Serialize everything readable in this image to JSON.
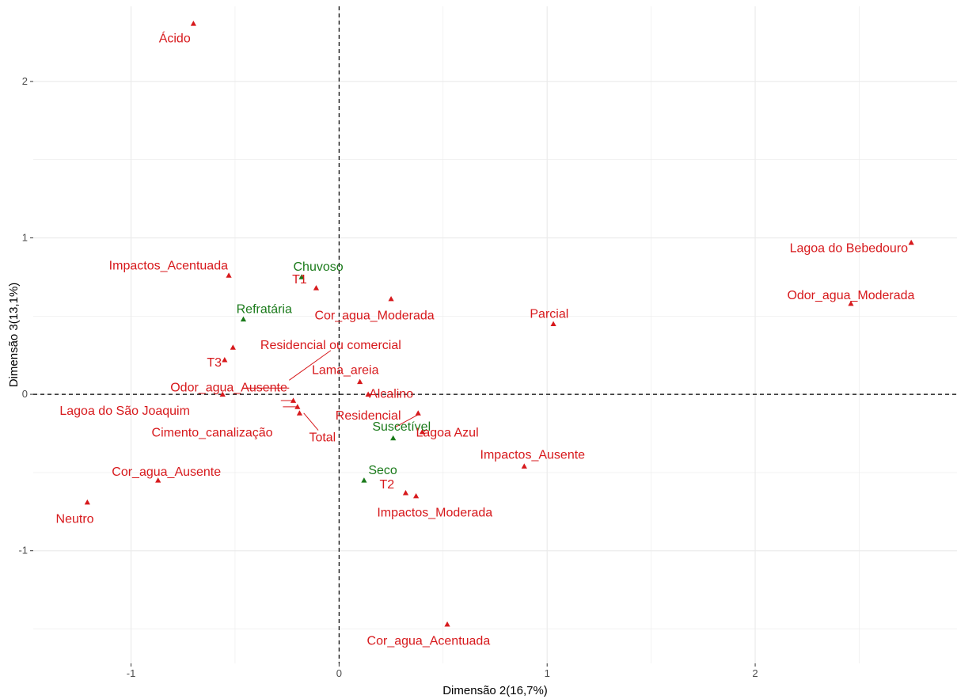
{
  "chart_data": {
    "type": "scatter",
    "xlabel": "Dimensão 2(16,7%)",
    "ylabel": "Dimensão 3(13,1%)",
    "xlim": [
      -1.47,
      2.97
    ],
    "ylim": [
      -1.72,
      2.48
    ],
    "x_ticks": [
      -1,
      0,
      1,
      2
    ],
    "y_ticks": [
      -1,
      0,
      1,
      2
    ],
    "x_tick_labels": [
      "-1",
      "0",
      "1",
      "2"
    ],
    "y_tick_labels": [
      "-1",
      "0",
      "1",
      "2"
    ],
    "grid": true,
    "reference_lines": {
      "x": 0,
      "y": 0,
      "style": "dashed"
    },
    "colors": {
      "red": "#d7191c",
      "green": "#1a7a1a",
      "grid": "#ebebeb",
      "tick": "#4d4d4d"
    },
    "points": [
      {
        "label": "Ácido",
        "x": -0.7,
        "y": 2.37,
        "color": "red",
        "lx": -0.79,
        "ly": 2.27
      },
      {
        "label": "Lagoa do Bebedouro",
        "x": 2.75,
        "y": 0.97,
        "color": "red",
        "lx": 2.45,
        "ly": 0.93
      },
      {
        "label": "Odor_agua_Moderada",
        "x": 2.46,
        "y": 0.58,
        "color": "red",
        "lx": 2.46,
        "ly": 0.63
      },
      {
        "label": "Impactos_Acentuada",
        "x": -0.53,
        "y": 0.76,
        "color": "red",
        "lx": -0.82,
        "ly": 0.82
      },
      {
        "label": "Chuvoso",
        "x": -0.18,
        "y": 0.75,
        "color": "green",
        "lx": -0.1,
        "ly": 0.81
      },
      {
        "label": "T1",
        "x": -0.11,
        "y": 0.68,
        "color": "red",
        "lx": -0.19,
        "ly": 0.73
      },
      {
        "label": "Cor_agua_Moderada",
        "x": 0.25,
        "y": 0.61,
        "color": "red",
        "lx": 0.17,
        "ly": 0.5
      },
      {
        "label": "Parcial",
        "x": 1.03,
        "y": 0.45,
        "color": "red",
        "lx": 1.01,
        "ly": 0.51
      },
      {
        "label": "Refratária",
        "x": -0.46,
        "y": 0.48,
        "color": "green",
        "lx": -0.36,
        "ly": 0.54
      },
      {
        "label": "Residencial ou comercial",
        "x": -0.51,
        "y": 0.3,
        "color": "red",
        "lx": -0.04,
        "ly": 0.31
      },
      {
        "label": "T3",
        "x": -0.55,
        "y": 0.22,
        "color": "red",
        "lx": -0.6,
        "ly": 0.2
      },
      {
        "label": "Lama_areia",
        "x": 0.1,
        "y": 0.08,
        "color": "red",
        "lx": 0.03,
        "ly": 0.15
      },
      {
        "label": "Odor_agua_Ausente",
        "x": -0.56,
        "y": 0.0,
        "color": "red",
        "lx": -0.53,
        "ly": 0.04
      },
      {
        "label": "Alcalino",
        "x": 0.14,
        "y": 0.0,
        "color": "red",
        "lx": 0.25,
        "ly": 0.0
      },
      {
        "label": "Lagoa do São Joaquim",
        "x": -0.22,
        "y": -0.04,
        "color": "red",
        "lx": -1.03,
        "ly": -0.11
      },
      {
        "label": "Residencial",
        "x": 0.38,
        "y": -0.12,
        "color": "red",
        "lx": 0.14,
        "ly": -0.14
      },
      {
        "label": "Cimento_canalização",
        "x": -0.2,
        "y": -0.08,
        "color": "red",
        "lx": -0.61,
        "ly": -0.25
      },
      {
        "label": "Total",
        "x": -0.19,
        "y": -0.12,
        "color": "red",
        "lx": -0.08,
        "ly": -0.28
      },
      {
        "label": "Suscetível",
        "x": 0.26,
        "y": -0.28,
        "color": "green",
        "lx": 0.3,
        "ly": -0.21
      },
      {
        "label": "Lagoa Azul",
        "x": 0.4,
        "y": -0.24,
        "color": "red",
        "lx": 0.52,
        "ly": -0.25
      },
      {
        "label": "Impactos_Ausente",
        "x": 0.89,
        "y": -0.46,
        "color": "red",
        "lx": 0.93,
        "ly": -0.39
      },
      {
        "label": "Cor_agua_Ausente",
        "x": -0.87,
        "y": -0.55,
        "color": "red",
        "lx": -0.83,
        "ly": -0.5
      },
      {
        "label": "Seco",
        "x": 0.12,
        "y": -0.55,
        "color": "green",
        "lx": 0.21,
        "ly": -0.49
      },
      {
        "label": "T2",
        "x": 0.32,
        "y": -0.63,
        "color": "red",
        "lx": 0.23,
        "ly": -0.58
      },
      {
        "label": "Impactos_Moderada",
        "x": 0.37,
        "y": -0.65,
        "color": "red",
        "lx": 0.46,
        "ly": -0.76
      },
      {
        "label": "Neutro",
        "x": -1.21,
        "y": -0.69,
        "color": "red",
        "lx": -1.27,
        "ly": -0.8
      },
      {
        "label": "Cor_agua_Acentuada",
        "x": 0.52,
        "y": -1.47,
        "color": "red",
        "lx": 0.43,
        "ly": -1.58
      }
    ],
    "segments": [
      {
        "from": [
          -0.24,
          0.09
        ],
        "to": [
          -0.04,
          0.28
        ]
      },
      {
        "from": [
          -0.46,
          0.04
        ],
        "to": [
          -0.24,
          0.04
        ]
      },
      {
        "from": [
          -0.28,
          -0.04
        ],
        "to": [
          -0.22,
          -0.04
        ]
      },
      {
        "from": [
          -0.27,
          -0.08
        ],
        "to": [
          -0.2,
          -0.08
        ]
      },
      {
        "from": [
          -0.17,
          -0.12
        ],
        "to": [
          -0.1,
          -0.23
        ]
      },
      {
        "from": [
          0.27,
          -0.21
        ],
        "to": [
          0.38,
          -0.13
        ]
      }
    ]
  }
}
